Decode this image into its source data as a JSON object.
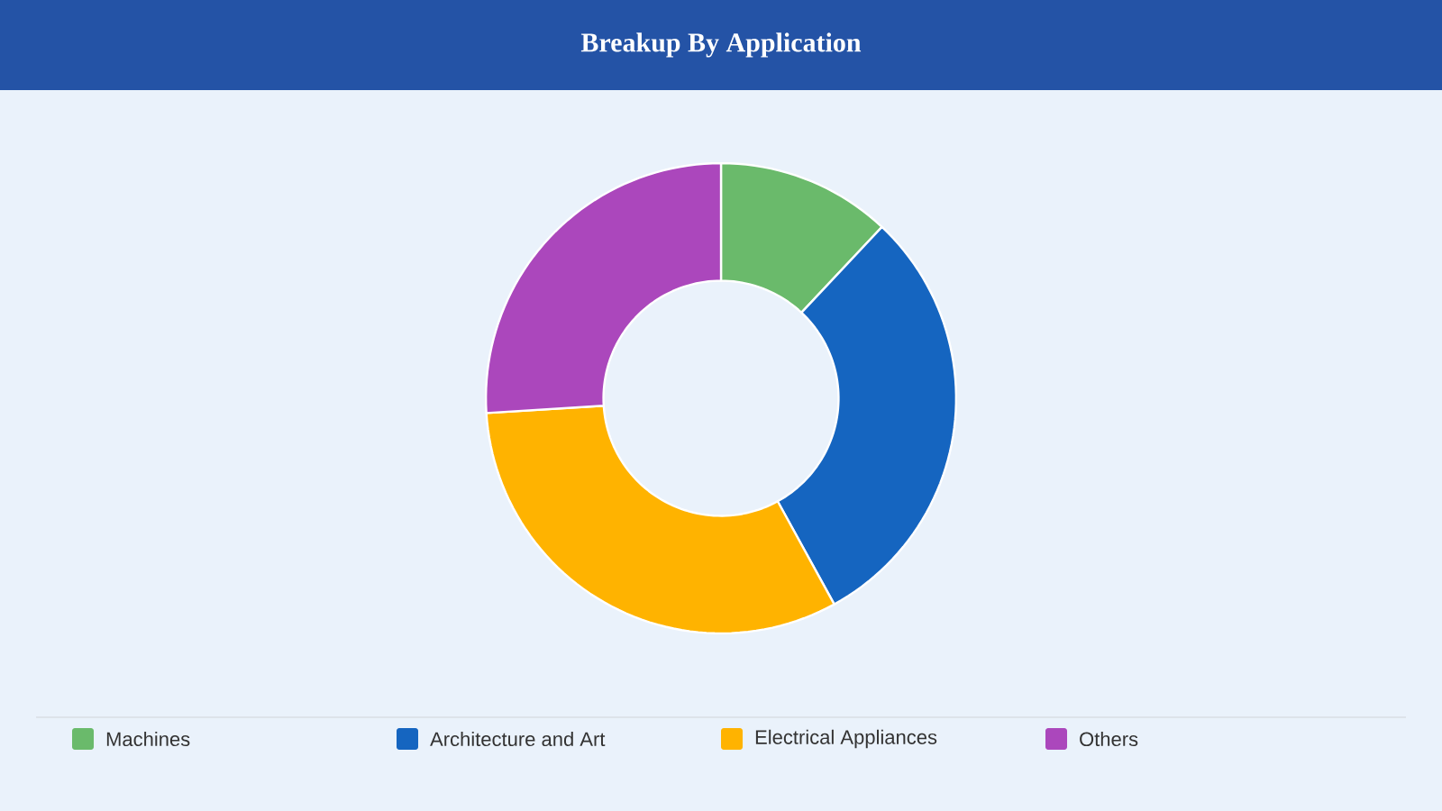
{
  "chart_data": {
    "type": "donut",
    "title": "Breakup By Application",
    "categories": [
      "Machines",
      "Architecture and Art",
      "Electrical Appliances",
      "Others"
    ],
    "values": [
      12,
      30,
      32,
      26
    ],
    "colors": [
      "#6aba6b",
      "#1565c0",
      "#ffb300",
      "#ab47bc"
    ],
    "legend": "bottom"
  }
}
